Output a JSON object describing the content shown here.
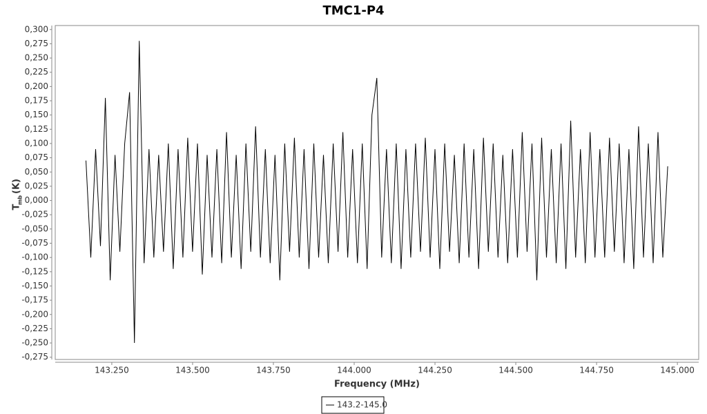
{
  "chart_data": {
    "type": "line",
    "title": "TMC1-P4",
    "xlabel": "Frequency (MHz)",
    "ylabel": "T",
    "ylabel_sub": "mb",
    "ylabel_unit": "(K)",
    "xlim": [
      143.075,
      145.066
    ],
    "ylim": [
      -0.279,
      0.307
    ],
    "xticks": [
      {
        "value": 143.25,
        "label": "143.250"
      },
      {
        "value": 143.5,
        "label": "143.500"
      },
      {
        "value": 143.75,
        "label": "143.750"
      },
      {
        "value": 144.0,
        "label": "144.000"
      },
      {
        "value": 144.25,
        "label": "144.250"
      },
      {
        "value": 144.5,
        "label": "144.500"
      },
      {
        "value": 144.75,
        "label": "144.750"
      },
      {
        "value": 145.0,
        "label": "145.000"
      }
    ],
    "yticks": [
      {
        "value": 0.3,
        "label": "0,300"
      },
      {
        "value": 0.275,
        "label": "0,275"
      },
      {
        "value": 0.25,
        "label": "0,250"
      },
      {
        "value": 0.225,
        "label": "0,225"
      },
      {
        "value": 0.2,
        "label": "0,200"
      },
      {
        "value": 0.175,
        "label": "0,175"
      },
      {
        "value": 0.15,
        "label": "0,150"
      },
      {
        "value": 0.125,
        "label": "0,125"
      },
      {
        "value": 0.1,
        "label": "0,100"
      },
      {
        "value": 0.075,
        "label": "0,075"
      },
      {
        "value": 0.05,
        "label": "0,050"
      },
      {
        "value": 0.025,
        "label": "0,025"
      },
      {
        "value": 0,
        "label": "0,000"
      },
      {
        "value": -0.025,
        "label": "-0,025"
      },
      {
        "value": -0.05,
        "label": "-0,050"
      },
      {
        "value": -0.075,
        "label": "-0,075"
      },
      {
        "value": -0.1,
        "label": "-0,100"
      },
      {
        "value": -0.125,
        "label": "-0,125"
      },
      {
        "value": -0.15,
        "label": "-0,150"
      },
      {
        "value": -0.175,
        "label": "-0,175"
      },
      {
        "value": -0.2,
        "label": "-0,200"
      },
      {
        "value": -0.225,
        "label": "-0,225"
      },
      {
        "value": -0.25,
        "label": "-0,250"
      },
      {
        "value": -0.275,
        "label": "-0,275"
      }
    ],
    "x": [
      143.17,
      143.185,
      143.2,
      143.215,
      143.23,
      143.245,
      143.26,
      143.275,
      143.29,
      143.305,
      143.32,
      143.335,
      143.35,
      143.365,
      143.38,
      143.395,
      143.41,
      143.425,
      143.44,
      143.455,
      143.47,
      143.485,
      143.5,
      143.515,
      143.53,
      143.545,
      143.56,
      143.575,
      143.59,
      143.605,
      143.62,
      143.635,
      143.65,
      143.665,
      143.68,
      143.695,
      143.71,
      143.725,
      143.74,
      143.755,
      143.77,
      143.785,
      143.8,
      143.815,
      143.83,
      143.845,
      143.86,
      143.875,
      143.89,
      143.905,
      143.92,
      143.935,
      143.95,
      143.965,
      143.98,
      143.995,
      144.01,
      144.025,
      144.04,
      144.055,
      144.07,
      144.085,
      144.1,
      144.115,
      144.13,
      144.145,
      144.16,
      144.175,
      144.19,
      144.205,
      144.22,
      144.235,
      144.25,
      144.265,
      144.28,
      144.295,
      144.31,
      144.325,
      144.34,
      144.355,
      144.37,
      144.385,
      144.4,
      144.415,
      144.43,
      144.445,
      144.46,
      144.475,
      144.49,
      144.505,
      144.52,
      144.535,
      144.55,
      144.565,
      144.58,
      144.595,
      144.61,
      144.625,
      144.64,
      144.655,
      144.67,
      144.685,
      144.7,
      144.715,
      144.73,
      144.745,
      144.76,
      144.775,
      144.79,
      144.805,
      144.82,
      144.835,
      144.85,
      144.865,
      144.88,
      144.895,
      144.91,
      144.925,
      144.94,
      144.955,
      144.97
    ],
    "series": [
      {
        "name": "143.2-145.0",
        "color": "#000000",
        "values": [
          0.07,
          -0.1,
          0.09,
          -0.08,
          0.18,
          -0.14,
          0.08,
          -0.09,
          0.1,
          0.19,
          -0.25,
          0.28,
          -0.11,
          0.09,
          -0.1,
          0.08,
          -0.09,
          0.1,
          -0.12,
          0.09,
          -0.1,
          0.11,
          -0.09,
          0.1,
          -0.13,
          0.08,
          -0.1,
          0.09,
          -0.11,
          0.12,
          -0.1,
          0.08,
          -0.12,
          0.1,
          -0.09,
          0.13,
          -0.1,
          0.09,
          -0.11,
          0.08,
          -0.14,
          0.1,
          -0.09,
          0.11,
          -0.1,
          0.09,
          -0.12,
          0.1,
          -0.1,
          0.08,
          -0.11,
          0.1,
          -0.09,
          0.12,
          -0.1,
          0.09,
          -0.11,
          0.1,
          -0.12,
          0.15,
          0.215,
          -0.1,
          0.09,
          -0.11,
          0.1,
          -0.12,
          0.09,
          -0.1,
          0.1,
          -0.09,
          0.11,
          -0.1,
          0.09,
          -0.12,
          0.1,
          -0.09,
          0.08,
          -0.11,
          0.1,
          -0.1,
          0.09,
          -0.12,
          0.11,
          -0.09,
          0.1,
          -0.1,
          0.08,
          -0.11,
          0.09,
          -0.1,
          0.12,
          -0.09,
          0.1,
          -0.14,
          0.11,
          -0.1,
          0.09,
          -0.11,
          0.1,
          -0.12,
          0.14,
          -0.1,
          0.09,
          -0.11,
          0.12,
          -0.1,
          0.09,
          -0.1,
          0.11,
          -0.09,
          0.1,
          -0.11,
          0.09,
          -0.12,
          0.13,
          -0.1,
          0.1,
          -0.11,
          0.12,
          -0.1,
          0.06
        ]
      }
    ]
  }
}
